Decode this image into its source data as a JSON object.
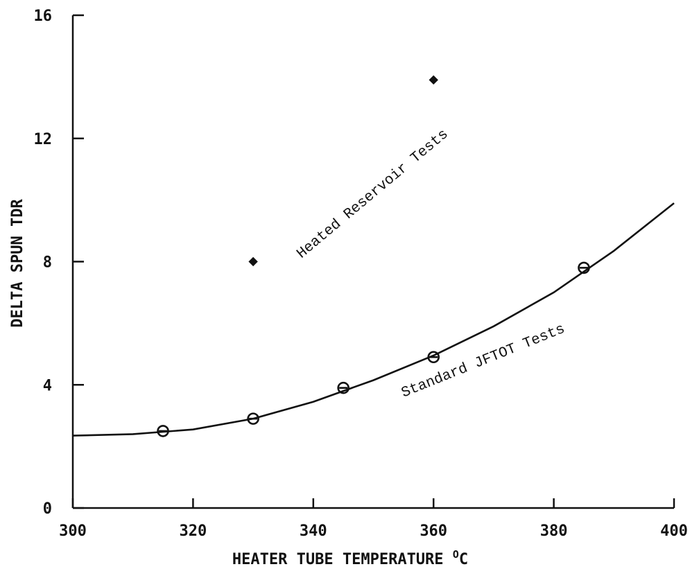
{
  "chart_data": {
    "type": "scatter",
    "title": "",
    "xlabel": "HEATER TUBE TEMPERATURE",
    "xlabel_unit": "C",
    "xlabel_degree": "O",
    "ylabel": "DELTA SPUN TDR",
    "xlim": [
      300,
      400
    ],
    "ylim": [
      0,
      16
    ],
    "x_ticks": [
      300,
      320,
      340,
      360,
      380,
      400
    ],
    "y_ticks": [
      0,
      4,
      8,
      12,
      16
    ],
    "x_tick_labels": [
      "300",
      "320",
      "340",
      "360",
      "380",
      "400"
    ],
    "y_tick_labels": [
      "0",
      "4",
      "8",
      "12",
      "16"
    ],
    "grid": false,
    "series": [
      {
        "name": "Standard JFTOT Tests",
        "marker": "circle",
        "x": [
          315,
          330,
          345,
          360,
          385
        ],
        "y": [
          2.5,
          2.9,
          3.9,
          4.9,
          7.8
        ]
      },
      {
        "name": "Heated Reservoir Tests",
        "marker": "diamond",
        "x": [
          330,
          360
        ],
        "y": [
          8.0,
          13.9
        ]
      }
    ],
    "fit_curve": {
      "x": [
        300,
        310,
        320,
        330,
        340,
        350,
        360,
        370,
        380,
        390,
        400
      ],
      "y": [
        2.35,
        2.4,
        2.55,
        2.9,
        3.45,
        4.15,
        4.95,
        5.9,
        7.0,
        8.35,
        9.9
      ]
    },
    "annotations": [
      {
        "text": "Heated Reservoir Tests",
        "x": 338,
        "y": 8.1,
        "rotation": -40
      },
      {
        "text": "Standard JFTOT Tests",
        "x": 355,
        "y": 3.6,
        "rotation": -22
      }
    ]
  }
}
